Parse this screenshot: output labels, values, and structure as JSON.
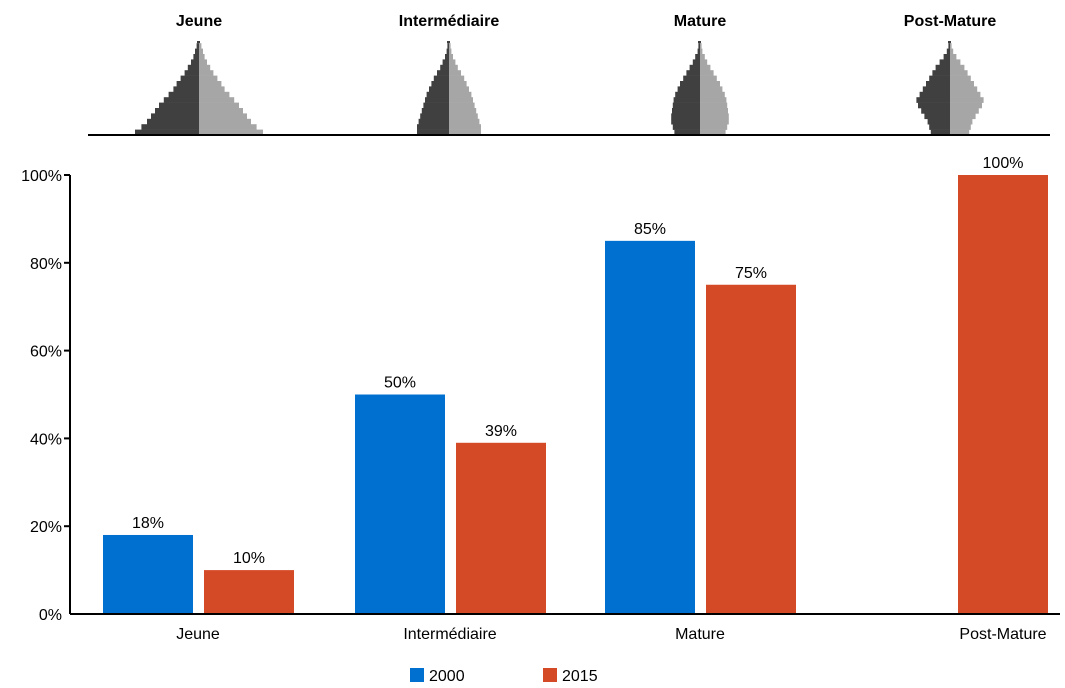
{
  "chart_data": {
    "type": "bar",
    "categories": [
      "Jeune",
      "Intermédiaire",
      "Mature",
      "Post-Mature"
    ],
    "pyramid_titles": [
      "Jeune",
      "Intermédiaire",
      "Mature",
      "Post-Mature"
    ],
    "series": [
      {
        "name": "2000",
        "color": "#0070d0",
        "values": [
          18,
          50,
          85,
          0
        ],
        "labels": [
          "18%",
          "50%",
          "85%",
          ""
        ]
      },
      {
        "name": "2015",
        "color": "#d44a27",
        "values": [
          10,
          39,
          75,
          100
        ],
        "labels": [
          "10%",
          "39%",
          "75%",
          "100%"
        ]
      }
    ],
    "y_ticks": [
      0,
      20,
      40,
      60,
      80,
      100
    ],
    "y_tick_labels": [
      "0%",
      "20%",
      "40%",
      "60%",
      "80%",
      "100%"
    ],
    "ylim": [
      0,
      100
    ],
    "legend_position": "bottom-center",
    "pyramid_colors": {
      "male": "#404040",
      "female": "#a6a6a6"
    },
    "population_pyramids": [
      {
        "male": [
          80,
          72,
          65,
          60,
          55,
          50,
          44,
          38,
          32,
          28,
          23,
          18,
          14,
          10,
          7,
          5,
          3
        ],
        "female": [
          80,
          72,
          65,
          60,
          55,
          50,
          44,
          38,
          32,
          28,
          23,
          18,
          14,
          10,
          7,
          5,
          3
        ]
      },
      {
        "male": [
          40,
          40,
          38,
          36,
          34,
          32,
          30,
          28,
          25,
          22,
          19,
          15,
          11,
          8,
          5,
          3,
          2
        ],
        "female": [
          40,
          40,
          38,
          36,
          34,
          32,
          30,
          28,
          25,
          22,
          19,
          15,
          11,
          8,
          5,
          3,
          2
        ]
      },
      {
        "male": [
          32,
          34,
          36,
          36,
          35,
          34,
          33,
          31,
          28,
          25,
          21,
          17,
          13,
          9,
          6,
          3,
          2
        ],
        "female": [
          32,
          34,
          36,
          36,
          35,
          34,
          33,
          31,
          28,
          25,
          21,
          17,
          13,
          9,
          6,
          3,
          2
        ]
      },
      {
        "male": [
          24,
          26,
          28,
          32,
          36,
          40,
          42,
          38,
          34,
          30,
          26,
          22,
          18,
          13,
          8,
          4,
          2
        ],
        "female": [
          24,
          26,
          28,
          32,
          36,
          40,
          42,
          38,
          34,
          30,
          26,
          22,
          18,
          13,
          8,
          4,
          2
        ]
      }
    ]
  }
}
